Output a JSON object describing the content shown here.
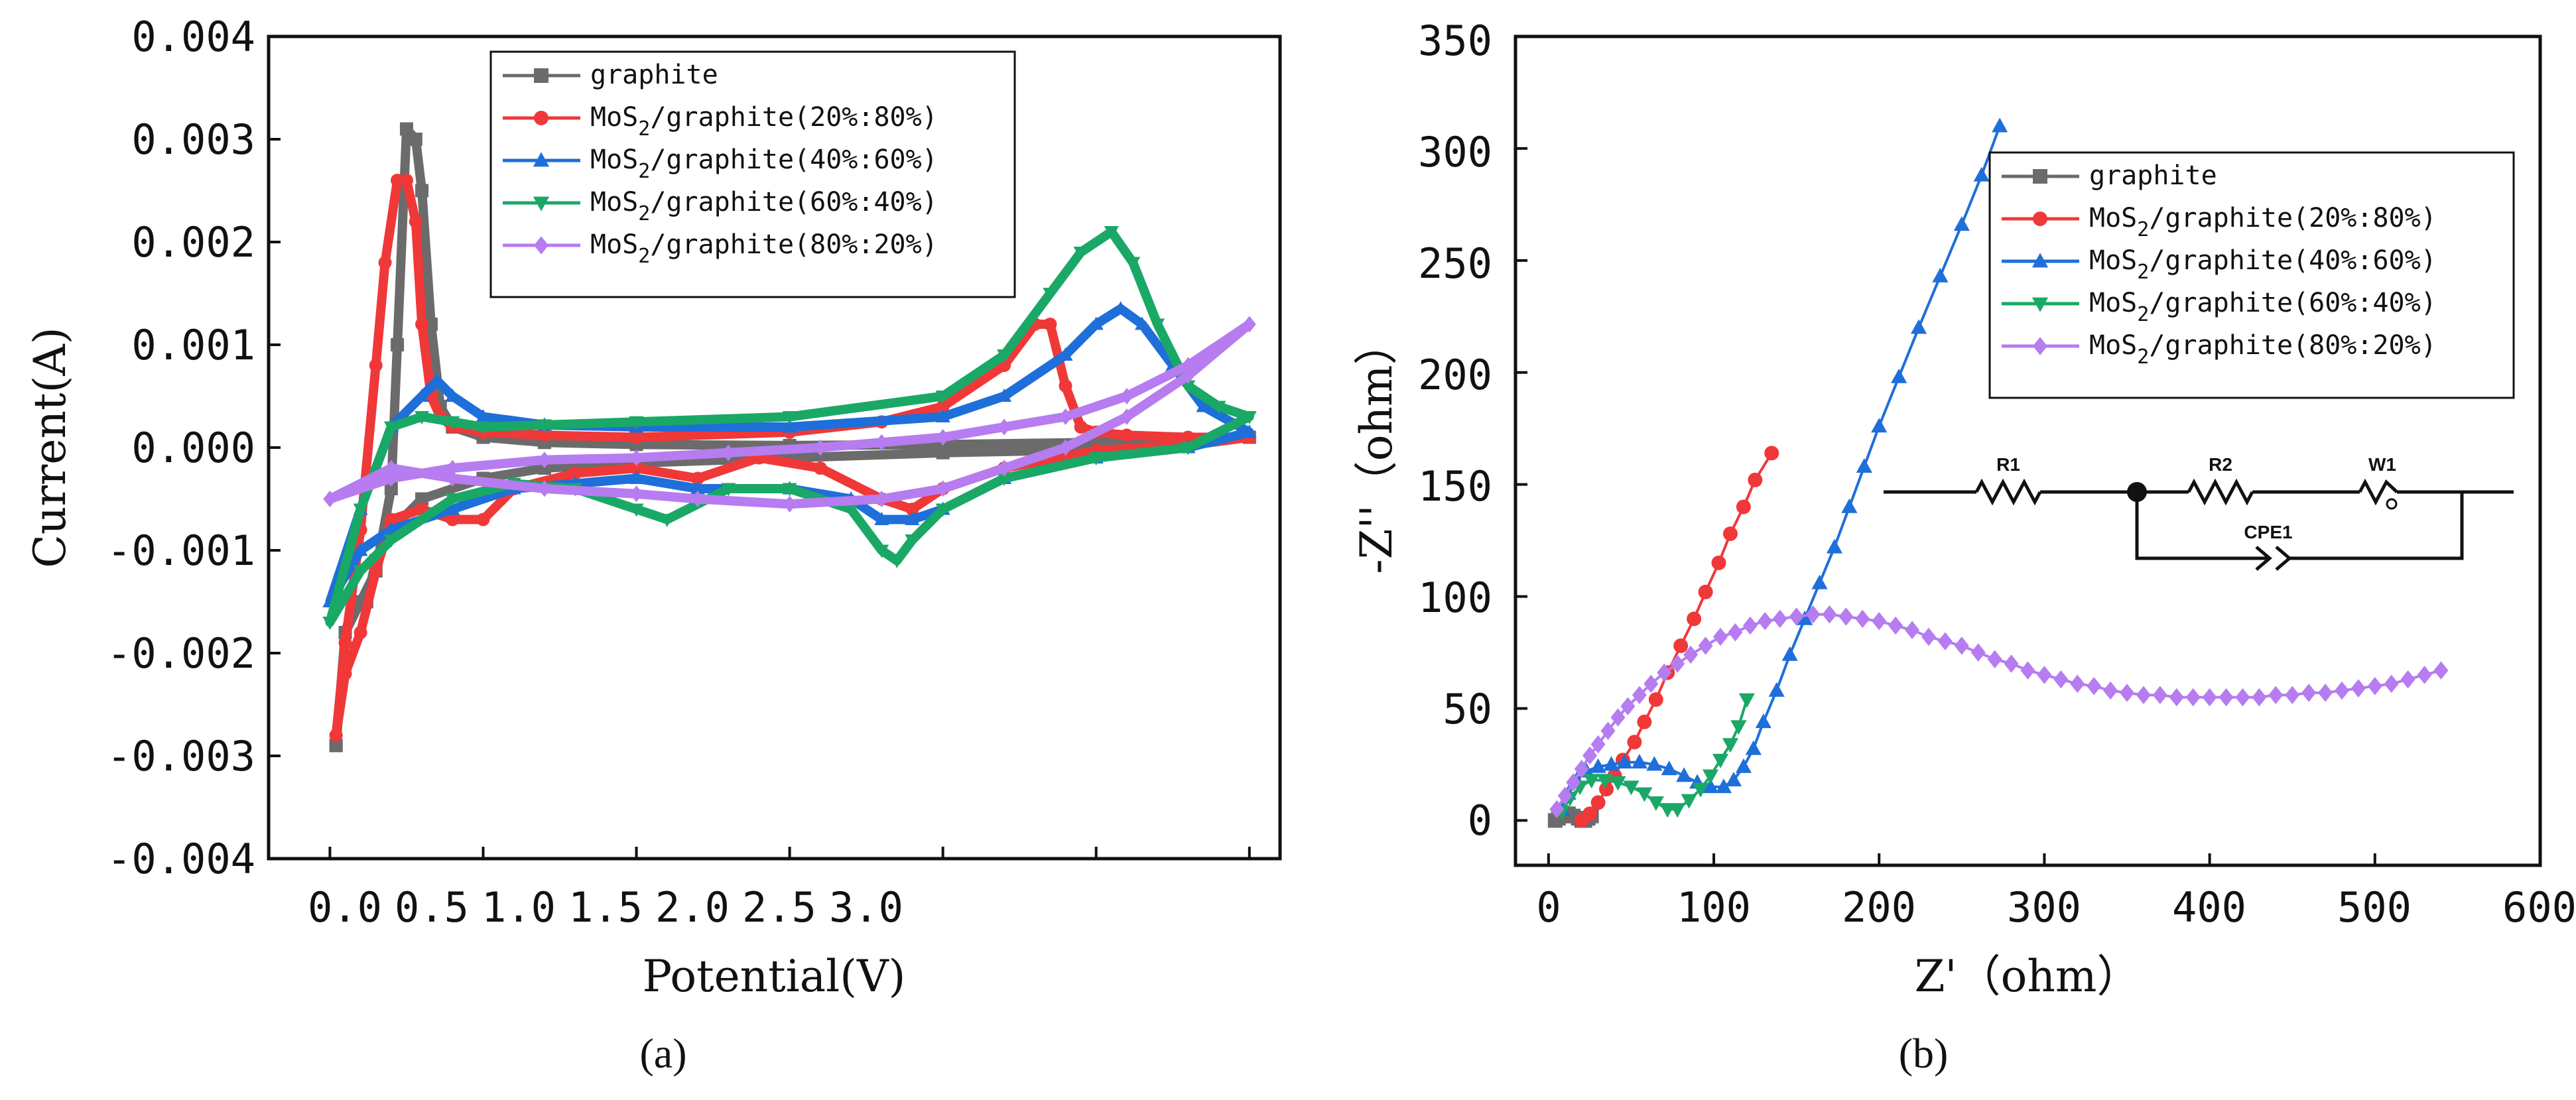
{
  "chart_data": [
    {
      "type": "line",
      "id": "a",
      "panel_label": "(a)",
      "xlabel": "Potential(V)",
      "ylabel": "Current(A)",
      "xlim": [
        -0.2,
        3.1
      ],
      "ylim": [
        -0.004,
        0.004
      ],
      "xticks": [
        0.0,
        0.5,
        1.0,
        1.5,
        2.0,
        2.5,
        3.0
      ],
      "xtick_labels": [
        "0.0",
        "0.5",
        "1.0",
        "1.5",
        "2.0",
        "2.5",
        "3.0"
      ],
      "yticks": [
        0.004,
        0.003,
        0.002,
        0.001,
        0.0,
        -0.001,
        -0.002,
        -0.003,
        -0.004
      ],
      "ytick_labels": [
        "0.004",
        "0.003",
        "0.002",
        "0.001",
        "0.000",
        "-0.001",
        "-0.002",
        "-0.003",
        "-0.004"
      ],
      "legend_position": "top-center",
      "series": [
        {
          "name": "graphite",
          "legend": {
            "base": "graphite",
            "sub": "",
            "rest": ""
          },
          "color": "#6b6b6b",
          "marker": "square",
          "x": [
            0.02,
            0.05,
            0.1,
            0.15,
            0.2,
            0.22,
            0.25,
            0.28,
            0.3,
            0.33,
            0.36,
            0.4,
            0.5,
            0.7,
            1.0,
            1.5,
            2.0,
            2.5,
            2.8,
            3.0,
            2.8,
            2.5,
            2.0,
            1.5,
            1.0,
            0.7,
            0.5,
            0.3,
            0.2,
            0.15,
            0.12,
            0.08,
            0.05,
            0.02
          ],
          "y": [
            -0.0029,
            -0.0018,
            -0.0015,
            -0.0012,
            -0.0004,
            0.001,
            0.0031,
            0.003,
            0.0025,
            0.0012,
            0.0004,
            0.0002,
            0.0001,
            5e-05,
            3e-05,
            2e-05,
            3e-05,
            5e-05,
            8e-05,
            0.0001,
            2e-05,
            -2e-05,
            -5e-05,
            -0.0001,
            -0.00015,
            -0.0002,
            -0.0003,
            -0.0005,
            -0.0008,
            -0.0011,
            -0.0015,
            -0.0015,
            -0.0018,
            -0.0029
          ]
        },
        {
          "name": "MoS2/graphite(20%:80%)",
          "legend": {
            "base": "MoS",
            "sub": "2",
            "rest": "/graphite(20%:80%)"
          },
          "color": "#f03838",
          "marker": "circle",
          "x": [
            0.02,
            0.05,
            0.1,
            0.15,
            0.18,
            0.22,
            0.25,
            0.28,
            0.3,
            0.33,
            0.36,
            0.4,
            0.5,
            0.7,
            1.0,
            1.5,
            1.8,
            2.0,
            2.2,
            2.3,
            2.35,
            2.4,
            2.45,
            2.5,
            2.6,
            2.8,
            3.0,
            2.8,
            2.5,
            2.2,
            2.0,
            1.9,
            1.8,
            1.6,
            1.4,
            1.2,
            1.0,
            0.8,
            0.6,
            0.5,
            0.4,
            0.3,
            0.2,
            0.15,
            0.1,
            0.05,
            0.02
          ],
          "y": [
            -0.0028,
            -0.0019,
            -0.0008,
            0.0008,
            0.0018,
            0.0026,
            0.0026,
            0.0022,
            0.0012,
            0.0005,
            0.0003,
            0.0002,
            0.00015,
            0.00012,
            0.0001,
            0.00015,
            0.00025,
            0.0004,
            0.0008,
            0.0012,
            0.0012,
            0.0006,
            0.0002,
            0.00015,
            0.00012,
            0.0001,
            0.0001,
            3e-05,
            -3e-05,
            -0.0002,
            -0.0004,
            -0.0006,
            -0.0005,
            -0.0002,
            -0.0001,
            -0.0003,
            -0.0002,
            -0.00025,
            -0.0004,
            -0.0007,
            -0.0007,
            -0.0006,
            -0.0007,
            -0.0012,
            -0.0018,
            -0.0022,
            -0.0028
          ]
        },
        {
          "name": "MoS2/graphite(40%:60%)",
          "legend": {
            "base": "MoS",
            "sub": "2",
            "rest": "/graphite(40%:60%)"
          },
          "color": "#1e6fd9",
          "marker": "triangle-up",
          "x": [
            0.0,
            0.1,
            0.2,
            0.3,
            0.35,
            0.4,
            0.5,
            0.7,
            1.0,
            1.5,
            2.0,
            2.2,
            2.4,
            2.5,
            2.58,
            2.65,
            2.75,
            2.85,
            3.0,
            2.8,
            2.5,
            2.2,
            2.0,
            1.9,
            1.8,
            1.7,
            1.5,
            1.2,
            1.0,
            0.8,
            0.6,
            0.4,
            0.2,
            0.1,
            0.0
          ],
          "y": [
            -0.0015,
            -0.0006,
            0.0002,
            0.0005,
            0.00065,
            0.0005,
            0.0003,
            0.00022,
            0.0002,
            0.0002,
            0.0003,
            0.0005,
            0.0009,
            0.0012,
            0.00135,
            0.0012,
            0.0008,
            0.0004,
            0.00015,
            0.0,
            -0.0001,
            -0.0003,
            -0.0006,
            -0.0007,
            -0.0007,
            -0.0005,
            -0.0004,
            -0.0004,
            -0.0003,
            -0.00035,
            -0.0004,
            -0.0006,
            -0.0008,
            -0.001,
            -0.0015
          ]
        },
        {
          "name": "MoS2/graphite(60%:40%)",
          "legend": {
            "base": "MoS",
            "sub": "2",
            "rest": "/graphite(60%:40%)"
          },
          "color": "#1aa866",
          "marker": "triangle-down",
          "x": [
            0.0,
            0.1,
            0.2,
            0.3,
            0.4,
            0.5,
            0.7,
            1.0,
            1.5,
            2.0,
            2.2,
            2.35,
            2.45,
            2.55,
            2.62,
            2.7,
            2.8,
            2.9,
            3.0,
            2.8,
            2.5,
            2.2,
            2.0,
            1.9,
            1.85,
            1.8,
            1.7,
            1.5,
            1.3,
            1.1,
            1.0,
            0.8,
            0.6,
            0.4,
            0.2,
            0.1,
            0.0
          ],
          "y": [
            -0.0017,
            -0.0006,
            0.0002,
            0.0003,
            0.00025,
            0.0002,
            0.00022,
            0.00025,
            0.0003,
            0.0005,
            0.0009,
            0.0015,
            0.0019,
            0.0021,
            0.0018,
            0.0012,
            0.0006,
            0.0004,
            0.0003,
            0.0,
            -0.0001,
            -0.0003,
            -0.0006,
            -0.0009,
            -0.0011,
            -0.001,
            -0.0006,
            -0.0004,
            -0.0004,
            -0.0007,
            -0.0006,
            -0.0004,
            -0.00035,
            -0.0005,
            -0.0009,
            -0.0012,
            -0.0017
          ]
        },
        {
          "name": "MoS2/graphite(80%:20%)",
          "legend": {
            "base": "MoS",
            "sub": "2",
            "rest": "/graphite(80%:20%)"
          },
          "color": "#b67cf0",
          "marker": "diamond",
          "x": [
            0.0,
            0.2,
            0.4,
            0.7,
            1.0,
            1.3,
            1.6,
            1.8,
            2.0,
            2.2,
            2.4,
            2.6,
            2.8,
            3.0,
            2.8,
            2.6,
            2.4,
            2.2,
            2.0,
            1.8,
            1.5,
            1.2,
            1.0,
            0.7,
            0.4,
            0.2,
            0.0
          ],
          "y": [
            -0.0005,
            -0.0003,
            -0.0002,
            -0.00012,
            -0.0001,
            -5e-05,
            0.0,
            5e-05,
            0.0001,
            0.0002,
            0.0003,
            0.0005,
            0.0008,
            0.0012,
            0.0007,
            0.0003,
            0.0,
            -0.0002,
            -0.0004,
            -0.0005,
            -0.00055,
            -0.0005,
            -0.00045,
            -0.0004,
            -0.0003,
            -0.0002,
            -0.0005
          ]
        }
      ]
    },
    {
      "type": "scatter",
      "id": "b",
      "panel_label": "(b)",
      "xlabel": "Z'（ohm）",
      "ylabel": "-Z''（ohm）",
      "xlim": [
        -20,
        600
      ],
      "ylim": [
        -20,
        350
      ],
      "xticks": [
        0,
        100,
        200,
        300,
        400,
        500,
        600
      ],
      "xtick_labels": [
        "0",
        "100",
        "200",
        "300",
        "400",
        "500",
        "600"
      ],
      "yticks": [
        0,
        50,
        100,
        150,
        200,
        250,
        300,
        350
      ],
      "ytick_labels": [
        "0",
        "50",
        "100",
        "150",
        "200",
        "250",
        "300",
        "350"
      ],
      "legend_position": "right",
      "inset_circuit": {
        "labels": [
          "R1",
          "R2",
          "W1",
          "CPE1"
        ]
      },
      "series": [
        {
          "name": "graphite",
          "legend": {
            "base": "graphite",
            "sub": "",
            "rest": ""
          },
          "color": "#6b6b6b",
          "marker": "square",
          "x": [
            4,
            6,
            9,
            12,
            15,
            18,
            20,
            22,
            24,
            26
          ],
          "y": [
            0,
            1,
            2,
            3,
            2,
            1,
            0,
            0,
            1,
            2
          ]
        },
        {
          "name": "MoS2/graphite(20%:80%)",
          "legend": {
            "base": "MoS",
            "sub": "2",
            "rest": "/graphite(20%:80%)"
          },
          "color": "#f03838",
          "marker": "circle",
          "x": [
            20,
            25,
            30,
            35,
            40,
            45,
            52,
            58,
            65,
            72,
            80,
            88,
            95,
            103,
            110,
            118,
            125,
            135
          ],
          "y": [
            0,
            3,
            8,
            14,
            20,
            27,
            35,
            44,
            54,
            66,
            78,
            90,
            102,
            115,
            128,
            140,
            152,
            164
          ]
        },
        {
          "name": "MoS2/graphite(40%:60%)",
          "legend": {
            "base": "MoS",
            "sub": "2",
            "rest": "/graphite(40%:60%)"
          },
          "color": "#1e6fd9",
          "marker": "triangle-up",
          "x": [
            8,
            12,
            17,
            23,
            30,
            38,
            46,
            55,
            64,
            73,
            82,
            90,
            98,
            106,
            112,
            118,
            124,
            130,
            138,
            146,
            155,
            164,
            173,
            182,
            191,
            200,
            212,
            224,
            237,
            250,
            262,
            273
          ],
          "y": [
            5,
            12,
            18,
            22,
            24,
            25,
            26,
            26,
            25,
            23,
            20,
            17,
            15,
            15,
            18,
            24,
            32,
            44,
            58,
            74,
            90,
            106,
            122,
            140,
            158,
            176,
            198,
            220,
            243,
            266,
            288,
            310
          ]
        },
        {
          "name": "MoS2/graphite(60%:40%)",
          "legend": {
            "base": "MoS",
            "sub": "2",
            "rest": "/graphite(60%:40%)"
          },
          "color": "#1aa866",
          "marker": "triangle-down",
          "x": [
            8,
            13,
            19,
            26,
            34,
            42,
            50,
            58,
            65,
            72,
            78,
            85,
            92,
            98,
            104,
            110,
            115,
            120
          ],
          "y": [
            4,
            10,
            15,
            18,
            18,
            17,
            15,
            12,
            8,
            5,
            5,
            9,
            14,
            20,
            27,
            34,
            42,
            54
          ]
        },
        {
          "name": "MoS2/graphite(80%:20%)",
          "legend": {
            "base": "MoS",
            "sub": "2",
            "rest": "/graphite(80%:20%)"
          },
          "color": "#b67cf0",
          "marker": "diamond",
          "x": [
            5,
            10,
            15,
            20,
            25,
            30,
            36,
            42,
            48,
            55,
            62,
            70,
            78,
            86,
            95,
            104,
            113,
            122,
            131,
            140,
            150,
            160,
            170,
            180,
            190,
            200,
            210,
            220,
            230,
            240,
            250,
            260,
            270,
            280,
            290,
            300,
            310,
            320,
            330,
            340,
            350,
            360,
            370,
            380,
            390,
            400,
            410,
            420,
            430,
            440,
            450,
            460,
            470,
            480,
            490,
            500,
            510,
            520,
            530,
            540
          ],
          "y": [
            5,
            11,
            17,
            23,
            29,
            34,
            40,
            46,
            51,
            56,
            61,
            66,
            70,
            74,
            78,
            82,
            84,
            87,
            89,
            90,
            91,
            92,
            92,
            91,
            90,
            89,
            87,
            85,
            82,
            80,
            78,
            75,
            72,
            70,
            67,
            65,
            63,
            61,
            60,
            58,
            57,
            56,
            56,
            55,
            55,
            55,
            55,
            55,
            55,
            56,
            56,
            57,
            57,
            58,
            59,
            60,
            61,
            63,
            65,
            67
          ]
        }
      ]
    }
  ]
}
